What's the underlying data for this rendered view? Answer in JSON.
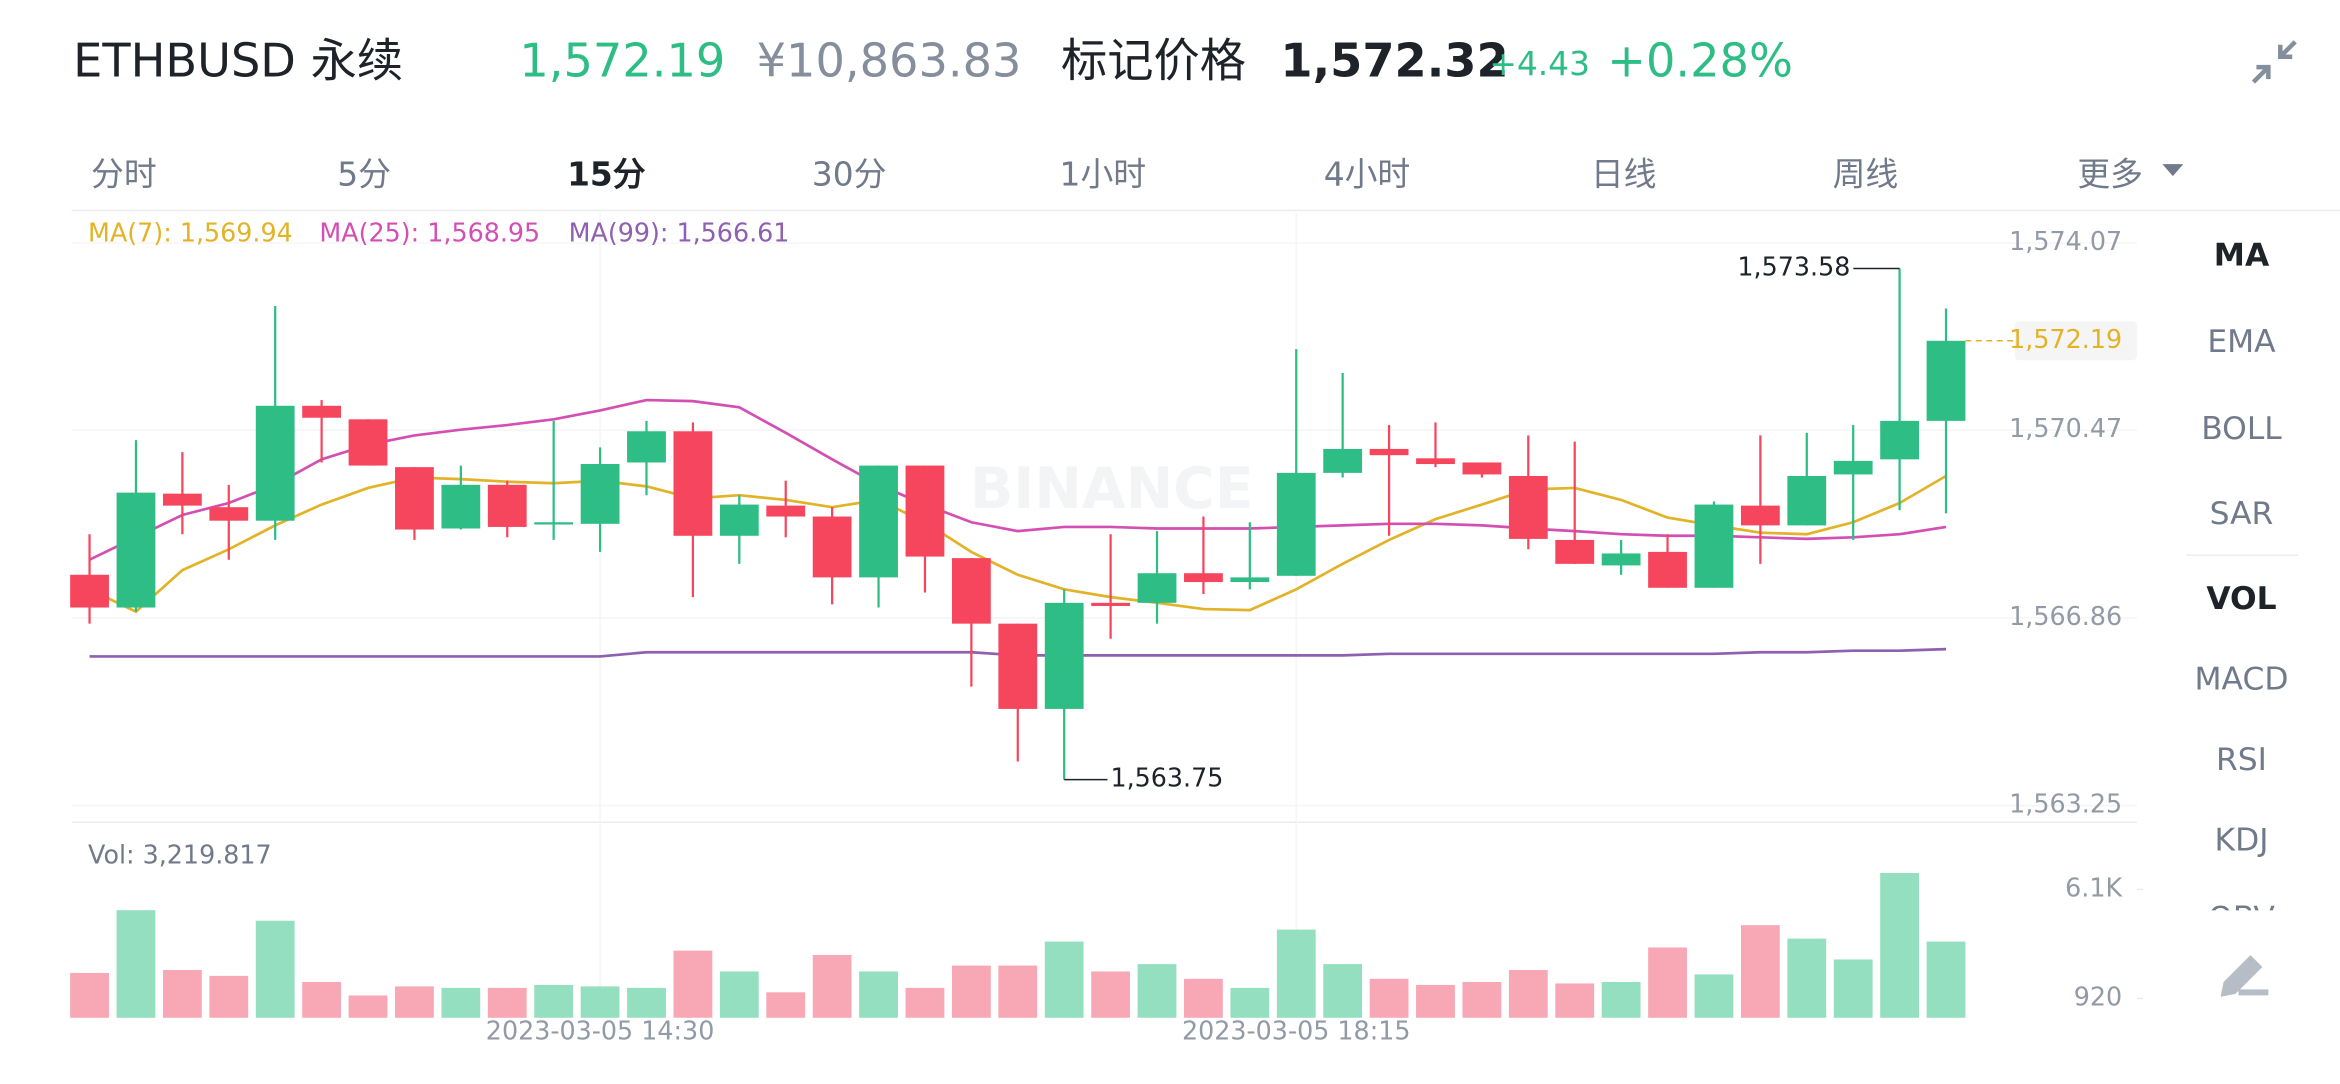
{
  "header": {
    "symbol": "ETHBUSD 永续",
    "price": "1,572.19",
    "cny_price": "¥10,863.83",
    "mark_label": "标记价格",
    "mark_price": "1,572.32",
    "change": "+4.43",
    "change_pct": "+0.28%"
  },
  "tabs": [
    "分时",
    "5分",
    "15分",
    "30分",
    "1小时",
    "4小时",
    "日线",
    "周线",
    "更多"
  ],
  "indicators": [
    "MA",
    "EMA",
    "BOLL",
    "SAR",
    "VOL",
    "MACD",
    "RSI",
    "KDJ",
    "OBV"
  ],
  "chart_data": {
    "type": "candlestick",
    "watermark": "BINANCE",
    "up_color": "#2ebd85",
    "down_color": "#f6465d",
    "price_tag": "1,572.19",
    "price_tag_color": "#e2b227",
    "annotations": [
      "1,573.58",
      "1,563.75"
    ],
    "categories": [
      null,
      null,
      null,
      null,
      null,
      null,
      null,
      null,
      null,
      null,
      null,
      "2023-03-05 14:30",
      null,
      null,
      null,
      null,
      null,
      null,
      null,
      null,
      null,
      null,
      null,
      null,
      null,
      null,
      "2023-03-05 18:15",
      null,
      null,
      null,
      null,
      null,
      null,
      null,
      null,
      null,
      null,
      null,
      null,
      null,
      null
    ],
    "open": [
      1567.69,
      1567.06,
      1569.25,
      1568.99,
      1568.73,
      1570.94,
      1570.68,
      1569.76,
      1568.58,
      1569.42,
      1568.67,
      1568.67,
      1569.85,
      1570.45,
      1568.44,
      1569.02,
      1568.81,
      1567.64,
      1569.79,
      1568.01,
      1566.75,
      1565.11,
      1567.15,
      1567.15,
      1567.72,
      1567.55,
      1567.67,
      1569.65,
      1570.11,
      1569.93,
      1569.85,
      1569.59,
      1568.36,
      1567.87,
      1568.13,
      1567.44,
      1569.02,
      1568.64,
      1569.62,
      1569.91,
      1570.65
    ],
    "high": [
      1568.47,
      1570.28,
      1570.05,
      1569.42,
      1572.86,
      1571.05,
      1570.68,
      1569.76,
      1569.79,
      1569.5,
      1570.65,
      1570.14,
      1570.65,
      1570.62,
      1569.22,
      1569.5,
      1568.99,
      1569.79,
      1569.79,
      1568.01,
      1566.75,
      1567.41,
      1568.47,
      1568.53,
      1568.81,
      1568.7,
      1572.03,
      1571.57,
      1570.57,
      1570.62,
      1569.85,
      1570.37,
      1570.25,
      1568.36,
      1568.47,
      1569.1,
      1570.37,
      1570.42,
      1570.57,
      1573.58,
      1572.81
    ],
    "low": [
      1566.75,
      1566.98,
      1568.47,
      1567.98,
      1568.36,
      1569.85,
      1569.79,
      1568.36,
      1568.56,
      1568.41,
      1568.36,
      1568.13,
      1569.22,
      1567.26,
      1567.9,
      1568.41,
      1567.12,
      1567.06,
      1567.35,
      1565.54,
      1564.1,
      1563.75,
      1566.46,
      1566.75,
      1567.32,
      1567.41,
      1567.67,
      1569.56,
      1568.44,
      1569.76,
      1569.56,
      1568.18,
      1567.9,
      1567.69,
      1567.44,
      1567.44,
      1567.9,
      1568.64,
      1568.36,
      1568.93,
      1568.87
    ],
    "close": [
      1567.06,
      1569.27,
      1569.02,
      1568.73,
      1570.94,
      1570.71,
      1569.79,
      1568.56,
      1569.42,
      1568.61,
      1568.7,
      1569.82,
      1570.45,
      1568.44,
      1569.04,
      1568.81,
      1567.64,
      1569.79,
      1568.04,
      1566.75,
      1565.11,
      1567.15,
      1567.09,
      1567.72,
      1567.55,
      1567.64,
      1569.65,
      1570.11,
      1569.99,
      1569.82,
      1569.62,
      1568.38,
      1567.9,
      1568.1,
      1567.44,
      1569.04,
      1568.64,
      1569.59,
      1569.88,
      1570.65,
      1572.19
    ],
    "ylim": [
      1562.93,
      1574.64
    ],
    "yticks": [
      {
        "value": 1563.25,
        "label": "1,563.25"
      },
      {
        "value": 1566.86,
        "label": "1,566.86"
      },
      {
        "value": 1570.47,
        "label": "1,570.47"
      },
      {
        "value": 1574.07,
        "label": "1,574.07"
      }
    ],
    "ma_lines": [
      {
        "name": "MA(7): 1,569.94",
        "color": "#e2b227",
        "values": [
          1567.41,
          1566.98,
          1567.78,
          1568.18,
          1568.64,
          1569.04,
          1569.36,
          1569.56,
          1569.53,
          1569.48,
          1569.45,
          1569.5,
          1569.39,
          1569.16,
          1569.22,
          1569.13,
          1568.99,
          1569.13,
          1568.7,
          1568.13,
          1567.69,
          1567.41,
          1567.26,
          1567.15,
          1567.03,
          1567.01,
          1567.41,
          1567.9,
          1568.36,
          1568.76,
          1569.04,
          1569.33,
          1569.36,
          1569.13,
          1568.79,
          1568.64,
          1568.5,
          1568.47,
          1568.7,
          1569.07,
          1569.59
        ]
      },
      {
        "name": "MA(25): 1,568.95",
        "color": "#d44fb4",
        "values": [
          1567.98,
          1568.41,
          1568.84,
          1569.07,
          1569.42,
          1569.91,
          1570.19,
          1570.37,
          1570.48,
          1570.57,
          1570.68,
          1570.85,
          1571.05,
          1571.03,
          1570.91,
          1570.42,
          1569.91,
          1569.42,
          1569.04,
          1568.7,
          1568.53,
          1568.61,
          1568.61,
          1568.58,
          1568.58,
          1568.58,
          1568.61,
          1568.64,
          1568.67,
          1568.67,
          1568.64,
          1568.58,
          1568.53,
          1568.47,
          1568.44,
          1568.44,
          1568.41,
          1568.38,
          1568.41,
          1568.47,
          1568.61
        ]
      },
      {
        "name": "MA(99): 1,566.61",
        "color": "#8f5fb0",
        "values": [
          1566.12,
          1566.12,
          1566.12,
          1566.12,
          1566.12,
          1566.12,
          1566.12,
          1566.12,
          1566.12,
          1566.12,
          1566.12,
          1566.12,
          1566.2,
          1566.2,
          1566.2,
          1566.2,
          1566.2,
          1566.2,
          1566.2,
          1566.2,
          1566.14,
          1566.14,
          1566.14,
          1566.14,
          1566.14,
          1566.14,
          1566.14,
          1566.14,
          1566.17,
          1566.17,
          1566.17,
          1566.17,
          1566.17,
          1566.17,
          1566.17,
          1566.17,
          1566.2,
          1566.2,
          1566.23,
          1566.23,
          1566.26
        ]
      }
    ],
    "volume": {
      "label": "Vol: 3,219.817",
      "up_color": "#93dfbf",
      "down_color": "#f8a7b4",
      "values": [
        2130,
        5110,
        2270,
        1990,
        4610,
        1700,
        1060,
        1490,
        1420,
        1420,
        1560,
        1490,
        1420,
        3190,
        2200,
        1210,
        2980,
        2200,
        1420,
        2480,
        2480,
        3620,
        2200,
        2550,
        1850,
        1420,
        4190,
        2550,
        1850,
        1560,
        1700,
        2270,
        1630,
        1700,
        3340,
        2060,
        4400,
        3760,
        2770,
        6880,
        3620
      ],
      "ylim": [
        0,
        8650
      ],
      "yticks": [
        920,
        {
          "value": 6100,
          "label": "6.1K"
        }
      ]
    }
  }
}
